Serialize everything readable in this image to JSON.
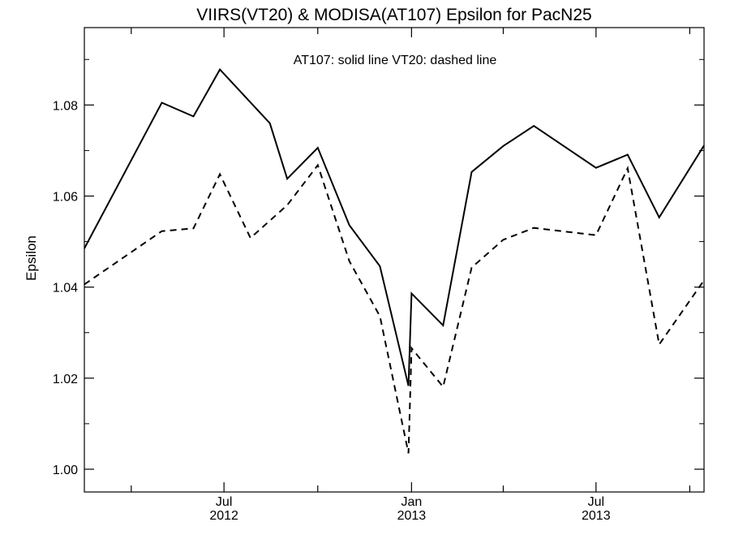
{
  "chart_data": {
    "type": "line",
    "title": "VIIRS(VT20) & MODISA(AT107)  Epsilon for PacN25",
    "annotation": "AT107: solid line   VT20: dashed line",
    "ylabel": "Epsilon",
    "xlabel": "",
    "xlim": [
      "2012-02-15",
      "2013-10-15"
    ],
    "ylim": [
      0.995,
      1.097
    ],
    "y_major_ticks": [
      1.0,
      1.02,
      1.04,
      1.06,
      1.08
    ],
    "y_tick_labels": [
      "1.00",
      "1.02",
      "1.04",
      "1.06",
      "1.08"
    ],
    "y_minor_step": 0.01,
    "x_month_ticks": [
      "2012-04-01",
      "2012-07-01",
      "2012-10-01",
      "2013-01-01",
      "2013-04-01",
      "2013-07-01",
      "2013-10-01"
    ],
    "x_tick_labels": [
      {
        "date": "2012-07-01",
        "month": "Jul",
        "year": "2012"
      },
      {
        "date": "2013-01-01",
        "month": "Jan",
        "year": "2013"
      },
      {
        "date": "2013-07-01",
        "month": "Jul",
        "year": "2013"
      }
    ],
    "grid": false,
    "series": [
      {
        "name": "AT107",
        "style": "solid",
        "color": "#000000",
        "points": [
          {
            "x": "2012-02-15",
            "y": 1.0485
          },
          {
            "x": "2012-05-01",
            "y": 1.0805
          },
          {
            "x": "2012-06-01",
            "y": 1.0775
          },
          {
            "x": "2012-06-27",
            "y": 1.0878
          },
          {
            "x": "2012-08-15",
            "y": 1.076
          },
          {
            "x": "2012-09-01",
            "y": 1.0638
          },
          {
            "x": "2012-10-01",
            "y": 1.0706
          },
          {
            "x": "2012-11-01",
            "y": 1.0536
          },
          {
            "x": "2012-12-01",
            "y": 1.0446
          },
          {
            "x": "2012-12-29",
            "y": 1.0183
          },
          {
            "x": "2013-01-01",
            "y": 1.0386
          },
          {
            "x": "2013-02-01",
            "y": 1.0316
          },
          {
            "x": "2013-03-01",
            "y": 1.0653
          },
          {
            "x": "2013-04-01",
            "y": 1.071
          },
          {
            "x": "2013-05-01",
            "y": 1.0754
          },
          {
            "x": "2013-07-01",
            "y": 1.0662
          },
          {
            "x": "2013-08-01",
            "y": 1.0691
          },
          {
            "x": "2013-09-01",
            "y": 1.0553
          },
          {
            "x": "2013-10-15",
            "y": 1.0711
          }
        ]
      },
      {
        "name": "VT20",
        "style": "dashed",
        "color": "#000000",
        "points": [
          {
            "x": "2012-02-15",
            "y": 1.0406
          },
          {
            "x": "2012-05-01",
            "y": 1.0523
          },
          {
            "x": "2012-06-01",
            "y": 1.0529
          },
          {
            "x": "2012-06-27",
            "y": 1.0648
          },
          {
            "x": "2012-07-27",
            "y": 1.0508
          },
          {
            "x": "2012-09-01",
            "y": 1.058
          },
          {
            "x": "2012-10-01",
            "y": 1.0668
          },
          {
            "x": "2012-11-01",
            "y": 1.0457
          },
          {
            "x": "2012-12-01",
            "y": 1.0336
          },
          {
            "x": "2012-12-29",
            "y": 1.0035
          },
          {
            "x": "2013-01-01",
            "y": 1.0266
          },
          {
            "x": "2013-02-01",
            "y": 1.0181
          },
          {
            "x": "2013-03-01",
            "y": 1.0443
          },
          {
            "x": "2013-04-01",
            "y": 1.0504
          },
          {
            "x": "2013-05-01",
            "y": 1.053
          },
          {
            "x": "2013-07-01",
            "y": 1.0514
          },
          {
            "x": "2013-08-01",
            "y": 1.0661
          },
          {
            "x": "2013-09-01",
            "y": 1.0274
          },
          {
            "x": "2013-10-15",
            "y": 1.0415
          }
        ]
      }
    ]
  }
}
